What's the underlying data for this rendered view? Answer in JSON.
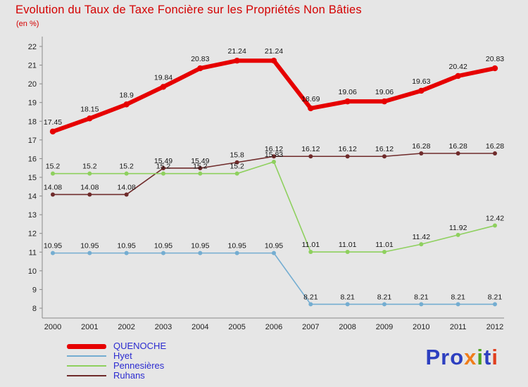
{
  "chart_data": {
    "type": "line",
    "title": "Evolution du Taux de Taxe Foncière sur les Propriétés Non Bâties",
    "subtitle": "(en %)",
    "x": [
      2000,
      2001,
      2002,
      2003,
      2004,
      2005,
      2006,
      2007,
      2008,
      2009,
      2010,
      2011,
      2012
    ],
    "xlabel": "",
    "ylabel": "en %",
    "ylim": [
      8,
      22
    ],
    "yticks": [
      8,
      9,
      10,
      11,
      12,
      13,
      14,
      15,
      16,
      17,
      18,
      19,
      20,
      21,
      22
    ],
    "grid": false,
    "legend_position": "bottom-left",
    "series": [
      {
        "name": "QUENOCHE",
        "color": "#e60000",
        "stroke_width": 6,
        "values": [
          17.45,
          18.15,
          18.9,
          19.84,
          20.83,
          21.24,
          21.24,
          18.69,
          19.06,
          19.06,
          19.63,
          20.42,
          20.83
        ]
      },
      {
        "name": "Hyet",
        "color": "#74add1",
        "stroke_width": 1.6,
        "values": [
          10.95,
          10.95,
          10.95,
          10.95,
          10.95,
          10.95,
          10.95,
          8.21,
          8.21,
          8.21,
          8.21,
          8.21,
          8.21
        ]
      },
      {
        "name": "Pennesières",
        "color": "#8ed05e",
        "stroke_width": 1.6,
        "values": [
          15.2,
          15.2,
          15.2,
          15.2,
          15.2,
          15.2,
          15.83,
          11.01,
          11.01,
          11.01,
          11.42,
          11.92,
          12.42
        ]
      },
      {
        "name": "Ruhans",
        "color": "#6f2b2b",
        "stroke_width": 1.6,
        "values": [
          14.08,
          14.08,
          14.08,
          15.49,
          15.49,
          15.8,
          16.12,
          16.12,
          16.12,
          16.12,
          16.28,
          16.28,
          16.28
        ]
      }
    ]
  },
  "colors": {
    "background": "#e6e6e6",
    "title": "#d40000",
    "legend_text": "#2b2bd0",
    "axis": "#8a8a8a",
    "data_label": "#151515"
  },
  "logo": {
    "text": "Proxiti",
    "letters": [
      {
        "ch": "P",
        "color": "#2d3fc0"
      },
      {
        "ch": "r",
        "color": "#2d3fc0"
      },
      {
        "ch": "o",
        "color": "#2d3fc0"
      },
      {
        "ch": "x",
        "color": "#f07d1a"
      },
      {
        "ch": "i",
        "color": "#4fa320"
      },
      {
        "ch": "t",
        "color": "#2d3fc0"
      },
      {
        "ch": "i",
        "color": "#e04020"
      }
    ]
  }
}
